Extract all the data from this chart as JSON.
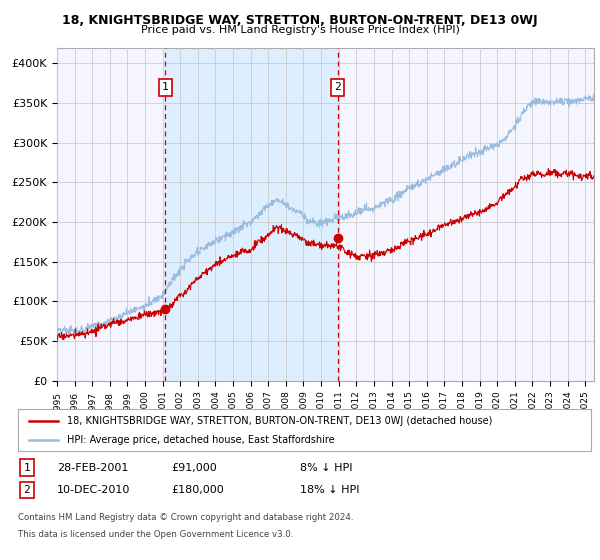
{
  "title_line1": "18, KNIGHTSBRIDGE WAY, STRETTON, BURTON-ON-TRENT, DE13 0WJ",
  "title_line2": "Price paid vs. HM Land Registry's House Price Index (HPI)",
  "ylabel_ticks": [
    "£0",
    "£50K",
    "£100K",
    "£150K",
    "£200K",
    "£250K",
    "£300K",
    "£350K",
    "£400K"
  ],
  "ytick_values": [
    0,
    50000,
    100000,
    150000,
    200000,
    250000,
    300000,
    350000,
    400000
  ],
  "ylim": [
    0,
    420000
  ],
  "xlim_start": 1995.0,
  "xlim_end": 2025.5,
  "purchase1_date": 2001.16,
  "purchase1_price": 91000,
  "purchase2_date": 2010.94,
  "purchase2_price": 180000,
  "shade_color": "#ddeeff",
  "line_red_color": "#cc0000",
  "line_blue_color": "#99bbdd",
  "dashed_color": "#cc0000",
  "grid_color": "#cccccc",
  "background_color": "#f5f5ff",
  "legend_red_label": "18, KNIGHTSBRIDGE WAY, STRETTON, BURTON-ON-TRENT, DE13 0WJ (detached house)",
  "legend_blue_label": "HPI: Average price, detached house, East Staffordshire",
  "ann1_date": "28-FEB-2001",
  "ann1_price": "£91,000",
  "ann1_pct": "8% ↓ HPI",
  "ann2_date": "10-DEC-2010",
  "ann2_price": "£180,000",
  "ann2_pct": "18% ↓ HPI",
  "footnote1": "Contains HM Land Registry data © Crown copyright and database right 2024.",
  "footnote2": "This data is licensed under the Open Government Licence v3.0."
}
